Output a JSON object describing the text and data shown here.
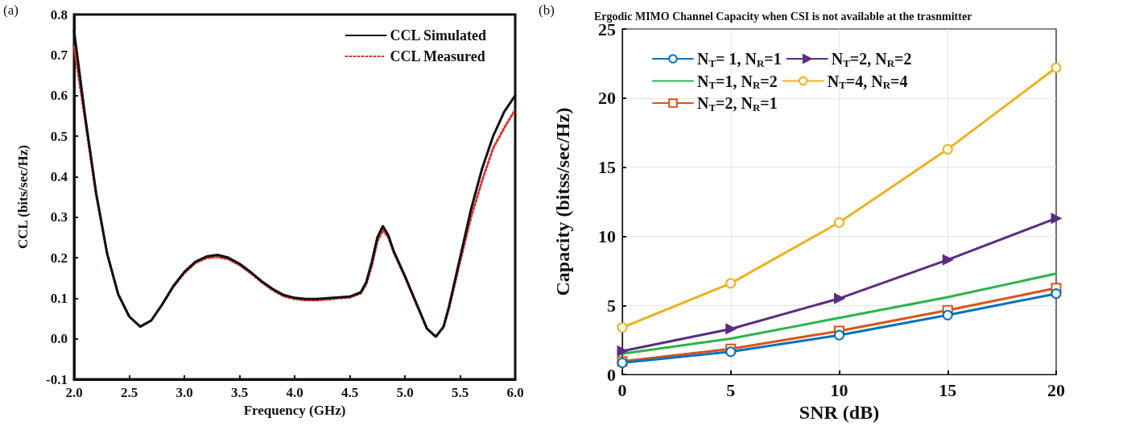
{
  "chart_data": [
    {
      "type": "line",
      "xlabel": "Frequency (GHz)",
      "ylabel": "CCL (bits/sec/Hz)",
      "annotations": [
        "(a)"
      ],
      "xlim": [
        2.0,
        6.0
      ],
      "xticks": [
        {
          "value": 2,
          "label": "2.0"
        },
        2.5,
        {
          "value": 3,
          "label": "3.0"
        },
        3.5,
        {
          "value": 4,
          "label": "4.0"
        },
        4.5,
        {
          "value": 5,
          "label": "5.0"
        },
        5.5,
        {
          "value": 6,
          "label": "6.0"
        }
      ],
      "ylim": [
        -0.1,
        0.8
      ],
      "yticks": [
        -0.1,
        {
          "value": 0,
          "label": "0.0"
        },
        0.1,
        0.2,
        0.3,
        0.4,
        0.5,
        0.6,
        0.7,
        0.8
      ],
      "grid": false,
      "legend": "top right",
      "marker": "none",
      "x": [
        2.0,
        2.1,
        2.2,
        2.3,
        2.4,
        2.5,
        2.6,
        2.7,
        2.8,
        2.9,
        3.0,
        3.1,
        3.2,
        3.3,
        3.4,
        3.5,
        3.6,
        3.7,
        3.8,
        3.9,
        4.0,
        4.1,
        4.2,
        4.3,
        4.4,
        4.5,
        4.6,
        4.65,
        4.7,
        4.75,
        4.8,
        4.85,
        4.9,
        5.0,
        5.1,
        5.2,
        5.28,
        5.35,
        5.4,
        5.5,
        5.6,
        5.7,
        5.8,
        5.9,
        6.0
      ],
      "series": [
        {
          "name": "CCL Simulated",
          "color": "#111111",
          "line_style": "solid",
          "values": [
            0.76,
            0.55,
            0.36,
            0.21,
            0.11,
            0.055,
            0.03,
            0.045,
            0.085,
            0.13,
            0.165,
            0.19,
            0.203,
            0.207,
            0.2,
            0.185,
            0.165,
            0.142,
            0.123,
            0.108,
            0.101,
            0.098,
            0.098,
            0.1,
            0.102,
            0.104,
            0.115,
            0.14,
            0.19,
            0.25,
            0.278,
            0.255,
            0.215,
            0.155,
            0.09,
            0.025,
            0.005,
            0.03,
            0.08,
            0.2,
            0.32,
            0.42,
            0.5,
            0.56,
            0.6
          ]
        },
        {
          "name": "CCL Measured",
          "color": "#e0312b",
          "line_style": "dotted",
          "values": [
            0.72,
            0.54,
            0.355,
            0.21,
            0.11,
            0.055,
            0.03,
            0.045,
            0.085,
            0.128,
            0.162,
            0.187,
            0.199,
            0.202,
            0.196,
            0.182,
            0.162,
            0.14,
            0.12,
            0.105,
            0.098,
            0.095,
            0.095,
            0.097,
            0.1,
            0.102,
            0.112,
            0.135,
            0.18,
            0.24,
            0.268,
            0.25,
            0.212,
            0.152,
            0.088,
            0.025,
            0.005,
            0.028,
            0.075,
            0.19,
            0.3,
            0.39,
            0.47,
            0.52,
            0.565
          ]
        }
      ]
    },
    {
      "type": "line",
      "title": "Ergodic MIMO Channel Capacity when CSI is not available at the trasnmitter",
      "xlabel": "SNR (dB)",
      "ylabel": "Capacity (bitss/sec/Hz)",
      "annotations": [
        "(b)"
      ],
      "xlim": [
        0,
        20
      ],
      "xticks": [
        0,
        5,
        10,
        15,
        20
      ],
      "ylim": [
        0,
        25
      ],
      "yticks": [
        0,
        5,
        10,
        15,
        20,
        25
      ],
      "grid": true,
      "legend": "top left",
      "line_style": "solid",
      "x": [
        0,
        5,
        10,
        15,
        20
      ],
      "series": [
        {
          "name": "N$_{T}$= 1, N$_{R}$=1",
          "color": "#0072bd",
          "marker": "circle",
          "values": [
            0.85,
            1.65,
            2.85,
            4.3,
            5.85
          ]
        },
        {
          "name": "N$_{T}$=2, N$_{R}$=2",
          "color": "#5b2c83",
          "marker": "triangle",
          "values": [
            1.7,
            3.3,
            5.5,
            8.3,
            11.3
          ]
        },
        {
          "name": "N$_{T}$=1, N$_{R}$=2",
          "color": "#2db34a",
          "marker": "none",
          "values": [
            1.5,
            2.6,
            4.1,
            5.6,
            7.3
          ]
        },
        {
          "name": "N$_{T}$=4, N$_{R}$=4",
          "color": "#edb120",
          "marker": "circle",
          "values": [
            3.4,
            6.6,
            11.0,
            16.3,
            22.2
          ]
        },
        {
          "name": "N$_{T}$=2, N$_{R}$=1",
          "color": "#d95319",
          "marker": "square",
          "values": [
            0.95,
            1.85,
            3.15,
            4.65,
            6.25
          ]
        }
      ]
    }
  ]
}
